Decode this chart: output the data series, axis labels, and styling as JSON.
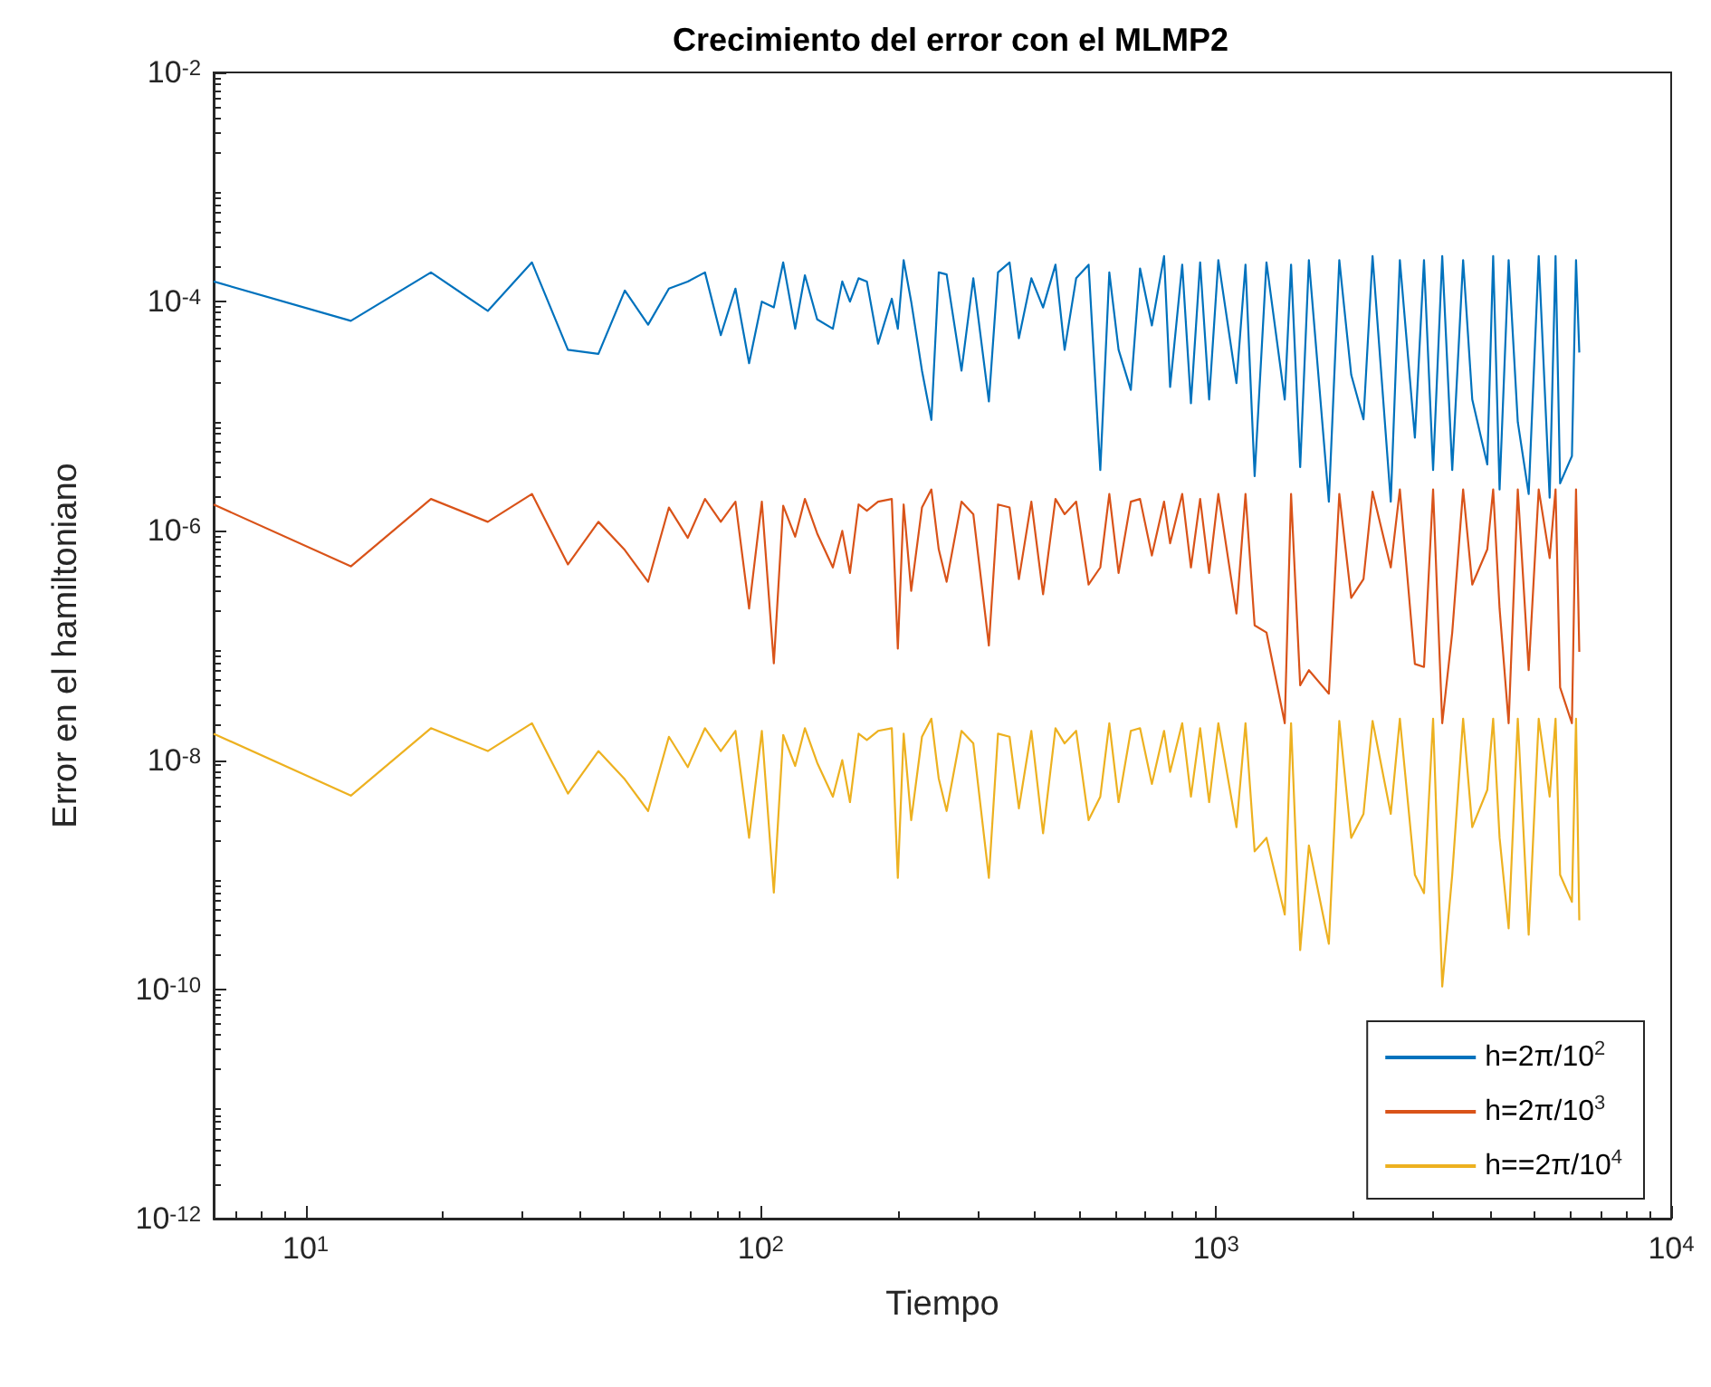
{
  "chart_data": {
    "type": "line",
    "title": "Crecimiento del error con el MLMP2",
    "xlabel": "Tiempo",
    "ylabel": "Error en el hamiltoniano",
    "log": "xy",
    "grid": false,
    "legend": "bottom right",
    "xlim": [
      6.28,
      10000
    ],
    "xticks": [
      {
        "value": 10,
        "label": "10$^{1}$"
      },
      {
        "value": 100,
        "label": "10$^{2}$"
      },
      {
        "value": 1000,
        "label": "10$^{3}$"
      },
      {
        "value": 10000,
        "label": "10$^{4}$"
      }
    ],
    "ylim": [
      1e-12,
      0.01
    ],
    "yticks": [
      {
        "value": 1e-12,
        "label": "10$^{-12}$"
      },
      {
        "value": 1e-10,
        "label": "10$^{-10}$"
      },
      {
        "value": 1e-08,
        "label": "10$^{-8}$"
      },
      {
        "value": 1e-06,
        "label": "10$^{-6}$"
      },
      {
        "value": 0.0001,
        "label": "10$^{-4}$"
      },
      {
        "value": 0.01,
        "label": "10$^{-2}$"
      }
    ],
    "x": [
      6.28,
      12.57,
      18.85,
      25.13,
      31.42,
      37.7,
      43.98,
      50.27,
      56.55,
      62.83,
      69.12,
      75.4,
      81.68,
      87.96,
      94.25,
      100.53,
      106.81,
      112,
      119,
      125,
      133,
      144,
      151,
      157,
      164,
      171,
      181,
      194,
      200,
      206,
      214,
      226,
      237,
      246,
      256,
      276,
      293,
      317,
      332,
      352,
      369,
      393,
      417,
      444,
      465,
      493,
      525,
      557,
      583,
      611,
      650,
      681,
      723,
      769,
      793,
      843,
      881,
      923,
      966,
      1012,
      1109,
      1161,
      1216,
      1291,
      1416,
      1462,
      1531,
      1600,
      1770,
      1866,
      1982,
      2109,
      2208,
      2421,
      2535,
      2735,
      2864,
      2999,
      3141,
      3304,
      3491,
      3656,
      3945,
      4064,
      4198,
      4395,
      4603,
      4864,
      5117,
      5408,
      5572,
      5702,
      6053,
      6180,
      6283
    ],
    "series": [
      {
        "name": "h=2π/10$^{2}$",
        "color": "#0072bd",
        "values": [
          0.00015,
          6.8e-05,
          0.00018,
          8.3e-05,
          0.00022,
          3.8e-05,
          3.5e-05,
          0.000125,
          6.3e-05,
          0.00013,
          0.00015,
          0.00018,
          5.1e-05,
          0.00013,
          2.9e-05,
          0.0001,
          8.9e-05,
          0.00022,
          5.8e-05,
          0.00017,
          7e-05,
          5.8e-05,
          0.00015,
          0.0001,
          0.00016,
          0.00015,
          4.3e-05,
          0.000106,
          5.8e-05,
          0.00023,
          0.0001,
          2.5e-05,
          9.3e-06,
          0.00018,
          0.000173,
          2.5e-05,
          0.00016,
          1.35e-05,
          0.00018,
          0.00022,
          4.8e-05,
          0.00016,
          8.9e-05,
          0.00021,
          3.8e-05,
          0.00016,
          0.00021,
          3.4e-06,
          0.00018,
          3.8e-05,
          1.7e-05,
          0.000195,
          6.2e-05,
          0.00025,
          1.8e-05,
          0.00021,
          1.3e-05,
          0.00022,
          1.4e-05,
          0.00023,
          1.95e-05,
          0.00021,
          3e-06,
          0.00022,
          1.4e-05,
          0.00021,
          3.6e-06,
          0.00023,
          1.8e-06,
          0.00023,
          2.3e-05,
          9.4e-06,
          0.00025,
          1.8e-06,
          0.00023,
          6.5e-06,
          0.00023,
          3.4e-06,
          0.00025,
          3.4e-06,
          0.00023,
          1.4e-05,
          3.8e-06,
          0.00025,
          2.3e-06,
          0.00023,
          8.9e-06,
          2.1e-06,
          0.00025,
          1.95e-06,
          0.00025,
          2.6e-06,
          4.5e-06,
          0.00023,
          3.6e-05
        ]
      },
      {
        "name": "h=2π/10$^{3}$",
        "color": "#d95319",
        "values": [
          1.7e-06,
          4.9e-07,
          1.9e-06,
          1.2e-06,
          2.1e-06,
          5.1e-07,
          1.2e-06,
          6.8e-07,
          3.6e-07,
          1.6e-06,
          8.7e-07,
          1.9e-06,
          1.2e-06,
          1.8e-06,
          2.1e-07,
          1.8e-06,
          7e-08,
          1.66e-06,
          8.9e-07,
          1.9e-06,
          9.5e-07,
          4.8e-07,
          1e-06,
          4.3e-07,
          1.7e-06,
          1.5e-06,
          1.8e-06,
          1.9e-06,
          9.4e-08,
          1.7e-06,
          3e-07,
          1.6e-06,
          2.3e-06,
          6.9e-07,
          3.6e-07,
          1.8e-06,
          1.4e-06,
          1e-07,
          1.7e-06,
          1.6e-06,
          3.8e-07,
          1.8e-06,
          2.8e-07,
          1.9e-06,
          1.4e-06,
          1.8e-06,
          3.4e-07,
          4.8e-07,
          2.1e-06,
          4.3e-07,
          1.8e-06,
          1.9e-06,
          6.1e-07,
          1.8e-06,
          7.8e-07,
          2.1e-06,
          4.8e-07,
          1.9e-06,
          4.3e-07,
          2.1e-06,
          1.9e-07,
          2.1e-06,
          1.5e-07,
          1.3e-07,
          2.1e-08,
          2.1e-06,
          4.5e-08,
          6.1e-08,
          3.8e-08,
          2.1e-06,
          2.6e-07,
          3.8e-07,
          2.2e-06,
          4.8e-07,
          2.3e-06,
          6.9e-08,
          6.5e-08,
          2.3e-06,
          2.1e-08,
          1.3e-07,
          2.3e-06,
          3.4e-07,
          6.9e-07,
          2.3e-06,
          2.1e-07,
          2.1e-08,
          2.3e-06,
          6.1e-08,
          2.3e-06,
          5.8e-07,
          2.3e-06,
          4.3e-08,
          2.1e-08,
          2.3e-06,
          8.8e-08
        ]
      },
      {
        "name": "h==2π/10$^{4}$",
        "color": "#edb120",
        "values": [
          1.7e-08,
          4.9e-09,
          1.9e-08,
          1.2e-08,
          2.1e-08,
          5.1e-09,
          1.2e-08,
          6.8e-09,
          3.6e-09,
          1.6e-08,
          8.7e-09,
          1.9e-08,
          1.2e-08,
          1.8e-08,
          2.1e-09,
          1.8e-08,
          7e-10,
          1.66e-08,
          8.9e-09,
          1.9e-08,
          9.5e-09,
          4.8e-09,
          1e-08,
          4.3e-09,
          1.7e-08,
          1.5e-08,
          1.8e-08,
          1.9e-08,
          9.4e-10,
          1.7e-08,
          3e-09,
          1.6e-08,
          2.3e-08,
          6.9e-09,
          3.6e-09,
          1.8e-08,
          1.4e-08,
          9.4e-10,
          1.7e-08,
          1.6e-08,
          3.8e-09,
          1.8e-08,
          2.3e-09,
          1.9e-08,
          1.4e-08,
          1.8e-08,
          3e-09,
          4.8e-09,
          2.1e-08,
          4.3e-09,
          1.8e-08,
          1.9e-08,
          6.2e-09,
          1.8e-08,
          7.9e-09,
          2.1e-08,
          4.8e-09,
          1.9e-08,
          4.3e-09,
          2.1e-08,
          2.6e-09,
          2.1e-08,
          1.6e-09,
          2.1e-09,
          4.5e-10,
          2.1e-08,
          2.2e-10,
          1.8e-09,
          2.5e-10,
          2.2e-08,
          2.1e-09,
          3.4e-09,
          2.2e-08,
          3.4e-09,
          2.3e-08,
          1e-09,
          6.9e-10,
          2.3e-08,
          1.06e-10,
          1e-09,
          2.3e-08,
          2.6e-09,
          5.5e-09,
          2.3e-08,
          2.1e-09,
          3.4e-10,
          2.3e-08,
          3e-10,
          2.3e-08,
          4.8e-09,
          2.3e-08,
          1e-09,
          5.8e-10,
          2.3e-08,
          4e-10
        ]
      }
    ]
  }
}
